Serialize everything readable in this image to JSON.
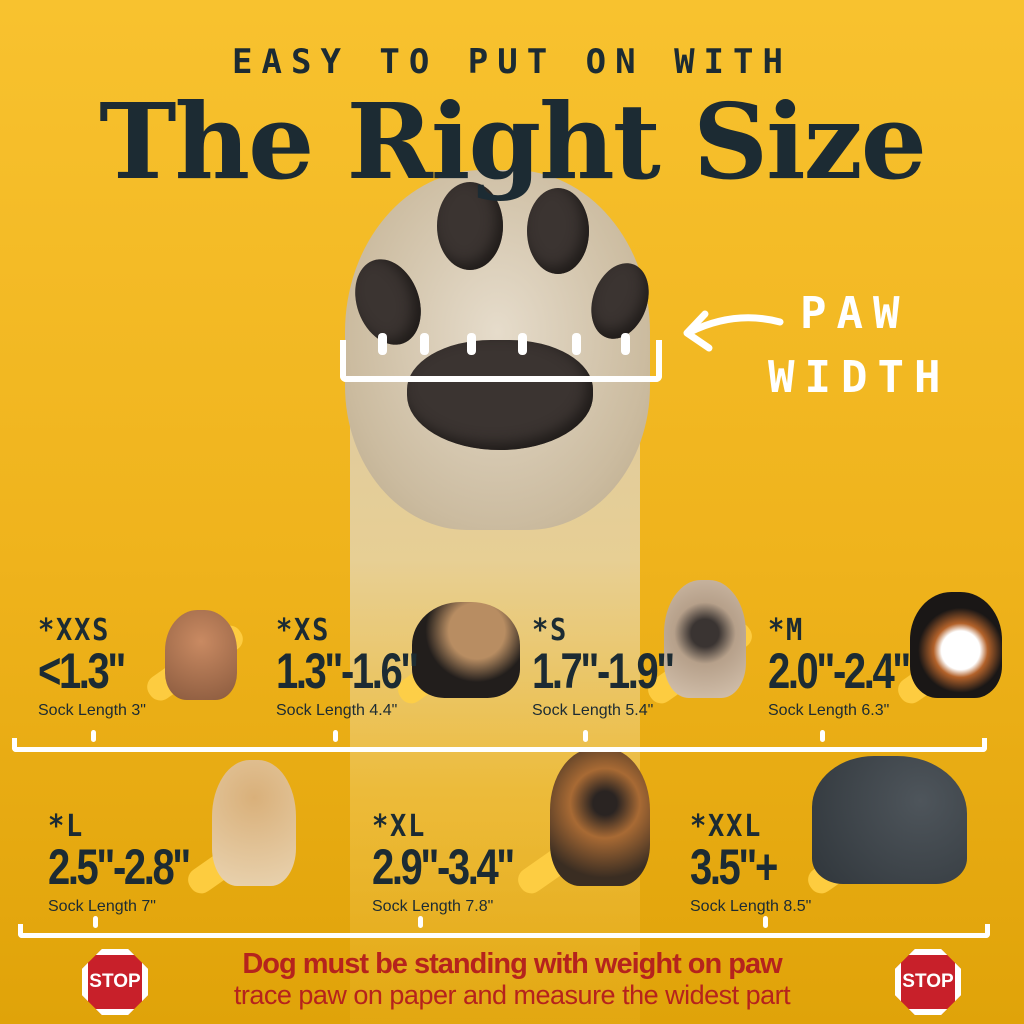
{
  "header": {
    "kicker": "EASY TO PUT ON WITH",
    "title": "The Right Size"
  },
  "measure": {
    "label_line1": "PAW",
    "label_line2": "WIDTH"
  },
  "sizes_row1": [
    {
      "label": "*XXS",
      "range": "<1.3\"",
      "sock": "Sock Length 3\""
    },
    {
      "label": "*XS",
      "range": "1.3\"-1.6\"",
      "sock": "Sock Length 4.4\""
    },
    {
      "label": "*S",
      "range": "1.7\"-1.9\"",
      "sock": "Sock Length 5.4\""
    },
    {
      "label": "*M",
      "range": "2.0\"-2.4\"",
      "sock": "Sock Length 6.3\""
    }
  ],
  "sizes_row2": [
    {
      "label": "*L",
      "range": "2.5\"-2.8\"",
      "sock": "Sock Length 7\""
    },
    {
      "label": "*XL",
      "range": "2.9\"-3.4\"",
      "sock": "Sock Length 7.8\""
    },
    {
      "label": "*XXL",
      "range": "3.5\"+",
      "sock": "Sock Length 8.5\""
    }
  ],
  "footer": {
    "warning": "Dog must be standing with weight on paw",
    "instruction": "trace paw on paper and measure the widest part",
    "stop_label": "STOP"
  },
  "colors": {
    "background": "#f8c22f",
    "text": "#1c2b33",
    "warning": "#b5231d",
    "stop": "#c8202a"
  }
}
